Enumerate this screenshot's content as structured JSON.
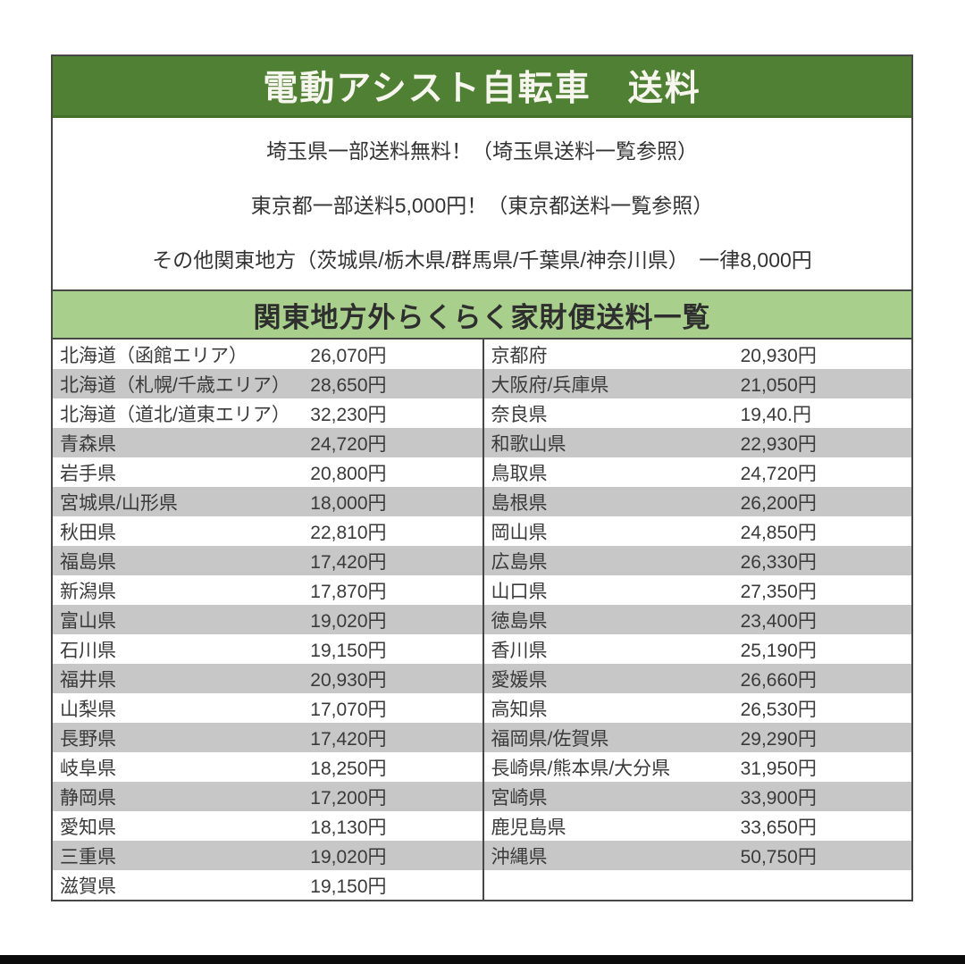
{
  "page": {
    "title": "電動アシスト自転車　送料",
    "notices": [
      "埼玉県一部送料無料！（埼玉県送料一覧参照）",
      "東京都一部送料5,000円！（東京都送料一覧参照）",
      "その他関東地方（茨城県/栃木県/群馬県/千葉県/神奈川県）　一律8,000円"
    ],
    "table_title": "関東地方外らくらく家財便送料一覧"
  },
  "colors": {
    "header_green": "#4f8033",
    "subheader_green": "#a9cf8d",
    "row_gray": "#c7c7c7",
    "border_dark": "#474747",
    "header_text": "#f6f6ee",
    "body_text": "#3a3a3a"
  },
  "table": {
    "left_rows": [
      {
        "name": "北海道（函館エリア）",
        "price": "26,070円"
      },
      {
        "name": "北海道（札幌/千歳エリア）",
        "price": "28,650円"
      },
      {
        "name": "北海道（道北/道東エリア）",
        "price": "32,230円"
      },
      {
        "name": "青森県",
        "price": "24,720円"
      },
      {
        "name": "岩手県",
        "price": "20,800円"
      },
      {
        "name": "宮城県/山形県",
        "price": "18,000円"
      },
      {
        "name": "秋田県",
        "price": "22,810円"
      },
      {
        "name": "福島県",
        "price": "17,420円"
      },
      {
        "name": "新潟県",
        "price": "17,870円"
      },
      {
        "name": "富山県",
        "price": "19,020円"
      },
      {
        "name": "石川県",
        "price": "19,150円"
      },
      {
        "name": "福井県",
        "price": "20,930円"
      },
      {
        "name": "山梨県",
        "price": "17,070円"
      },
      {
        "name": "長野県",
        "price": "17,420円"
      },
      {
        "name": "岐阜県",
        "price": "18,250円"
      },
      {
        "name": "静岡県",
        "price": "17,200円"
      },
      {
        "name": "愛知県",
        "price": "18,130円"
      },
      {
        "name": "三重県",
        "price": "19,020円"
      },
      {
        "name": "滋賀県",
        "price": "19,150円"
      }
    ],
    "right_rows": [
      {
        "name": "京都府",
        "price": "20,930円"
      },
      {
        "name": "大阪府/兵庫県",
        "price": "21,050円"
      },
      {
        "name": "奈良県",
        "price": "19,40.円"
      },
      {
        "name": "和歌山県",
        "price": "22,930円"
      },
      {
        "name": "鳥取県",
        "price": "24,720円"
      },
      {
        "name": "島根県",
        "price": "26,200円"
      },
      {
        "name": "岡山県",
        "price": "24,850円"
      },
      {
        "name": "広島県",
        "price": "26,330円"
      },
      {
        "name": "山口県",
        "price": "27,350円"
      },
      {
        "name": "徳島県",
        "price": "23,400円"
      },
      {
        "name": "香川県",
        "price": "25,190円"
      },
      {
        "name": "愛媛県",
        "price": "26,660円"
      },
      {
        "name": "高知県",
        "price": "26,530円"
      },
      {
        "name": "福岡県/佐賀県",
        "price": "29,290円"
      },
      {
        "name": "長崎県/熊本県/大分県",
        "price": "31,950円"
      },
      {
        "name": "宮崎県",
        "price": "33,900円"
      },
      {
        "name": "鹿児島県",
        "price": "33,650円"
      },
      {
        "name": "沖縄県",
        "price": "50,750円"
      },
      {
        "name": "",
        "price": ""
      }
    ]
  }
}
